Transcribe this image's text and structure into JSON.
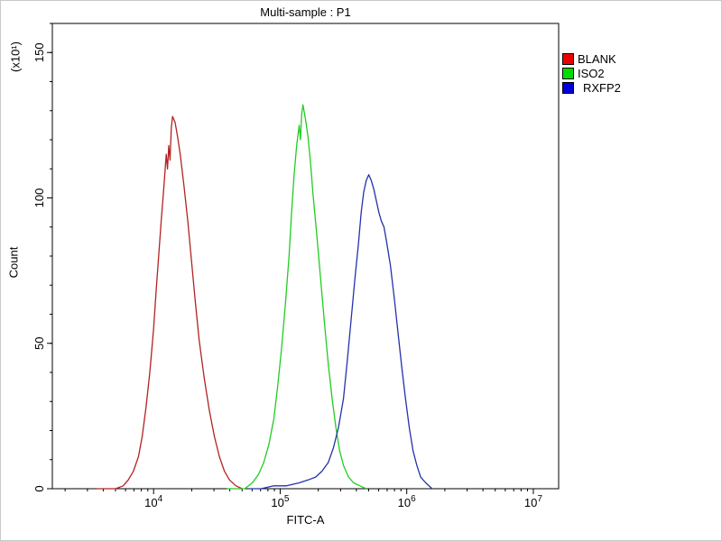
{
  "chart_data": {
    "type": "line",
    "title": "Multi-sample : P1",
    "xlabel": "FITC-A",
    "ylabel": "Count",
    "y_unit_label": "(x10¹)",
    "x_scale": "log",
    "x_log_range": [
      3.2,
      7.2
    ],
    "x_major_ticks_exp": [
      4,
      5,
      6,
      7
    ],
    "x_tick_labels": [
      "10⁴",
      "10⁵",
      "10⁶",
      "10⁷"
    ],
    "ylim": [
      0,
      160
    ],
    "y_major_ticks": [
      0,
      50,
      100,
      150
    ],
    "y_minor_step": 10,
    "grid": false,
    "legend_position": "top-right",
    "series": [
      {
        "name": "BLANK",
        "line_color": "#b22222",
        "legend_color": "#ee0000",
        "peak_x": 14000,
        "peak_y": 128,
        "points": [
          [
            3.55,
            0
          ],
          [
            3.7,
            0
          ],
          [
            3.76,
            1
          ],
          [
            3.8,
            3
          ],
          [
            3.84,
            6
          ],
          [
            3.88,
            11
          ],
          [
            3.91,
            18
          ],
          [
            3.94,
            28
          ],
          [
            3.97,
            40
          ],
          [
            4.0,
            55
          ],
          [
            4.02,
            68
          ],
          [
            4.04,
            80
          ],
          [
            4.06,
            92
          ],
          [
            4.08,
            103
          ],
          [
            4.1,
            115
          ],
          [
            4.11,
            110
          ],
          [
            4.12,
            118
          ],
          [
            4.13,
            113
          ],
          [
            4.14,
            124
          ],
          [
            4.15,
            128
          ],
          [
            4.17,
            126
          ],
          [
            4.19,
            121
          ],
          [
            4.21,
            115
          ],
          [
            4.24,
            104
          ],
          [
            4.27,
            92
          ],
          [
            4.3,
            78
          ],
          [
            4.33,
            64
          ],
          [
            4.36,
            51
          ],
          [
            4.4,
            38
          ],
          [
            4.44,
            27
          ],
          [
            4.48,
            18
          ],
          [
            4.52,
            11
          ],
          [
            4.56,
            6
          ],
          [
            4.6,
            3
          ],
          [
            4.65,
            1
          ],
          [
            4.7,
            0
          ]
        ]
      },
      {
        "name": "ISO2",
        "line_color": "#22cc22",
        "legend_color": "#00dd00",
        "peak_x": 150000,
        "peak_y": 132,
        "points": [
          [
            4.58,
            0
          ],
          [
            4.72,
            0
          ],
          [
            4.78,
            2
          ],
          [
            4.83,
            5
          ],
          [
            4.87,
            9
          ],
          [
            4.91,
            15
          ],
          [
            4.95,
            24
          ],
          [
            4.98,
            35
          ],
          [
            5.01,
            48
          ],
          [
            5.04,
            63
          ],
          [
            5.07,
            80
          ],
          [
            5.09,
            95
          ],
          [
            5.11,
            108
          ],
          [
            5.13,
            118
          ],
          [
            5.15,
            125
          ],
          [
            5.16,
            120
          ],
          [
            5.17,
            129
          ],
          [
            5.18,
            132
          ],
          [
            5.2,
            127
          ],
          [
            5.22,
            121
          ],
          [
            5.24,
            112
          ],
          [
            5.26,
            101
          ],
          [
            5.29,
            87
          ],
          [
            5.32,
            72
          ],
          [
            5.35,
            57
          ],
          [
            5.38,
            43
          ],
          [
            5.41,
            31
          ],
          [
            5.44,
            21
          ],
          [
            5.47,
            13
          ],
          [
            5.5,
            8
          ],
          [
            5.54,
            4
          ],
          [
            5.58,
            2
          ],
          [
            5.63,
            1
          ],
          [
            5.68,
            0
          ]
        ]
      },
      {
        "name": "RXFP2",
        "line_color": "#2233aa",
        "legend_color": "#0000dd",
        "peak_x": 500000,
        "peak_y": 108,
        "points": [
          [
            4.75,
            0
          ],
          [
            4.85,
            0
          ],
          [
            4.95,
            1
          ],
          [
            5.05,
            1
          ],
          [
            5.15,
            2
          ],
          [
            5.22,
            3
          ],
          [
            5.28,
            4
          ],
          [
            5.33,
            6
          ],
          [
            5.38,
            9
          ],
          [
            5.42,
            14
          ],
          [
            5.46,
            21
          ],
          [
            5.5,
            31
          ],
          [
            5.53,
            44
          ],
          [
            5.56,
            58
          ],
          [
            5.59,
            72
          ],
          [
            5.62,
            85
          ],
          [
            5.64,
            95
          ],
          [
            5.66,
            102
          ],
          [
            5.68,
            106
          ],
          [
            5.7,
            108
          ],
          [
            5.72,
            106
          ],
          [
            5.74,
            103
          ],
          [
            5.76,
            99
          ],
          [
            5.78,
            95
          ],
          [
            5.8,
            92
          ],
          [
            5.82,
            90
          ],
          [
            5.84,
            85
          ],
          [
            5.87,
            77
          ],
          [
            5.9,
            66
          ],
          [
            5.93,
            54
          ],
          [
            5.96,
            42
          ],
          [
            5.99,
            31
          ],
          [
            6.02,
            21
          ],
          [
            6.05,
            13
          ],
          [
            6.08,
            8
          ],
          [
            6.11,
            4
          ],
          [
            6.15,
            2
          ],
          [
            6.2,
            0
          ]
        ]
      }
    ]
  }
}
